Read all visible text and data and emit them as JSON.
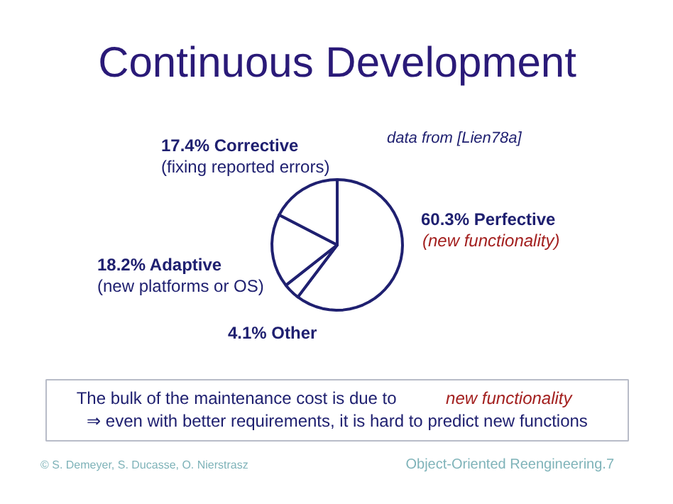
{
  "chart_data": {
    "type": "pie",
    "title": "Continuous Development",
    "categories": [
      "Perfective",
      "Other",
      "Adaptive",
      "Corrective"
    ],
    "values": [
      60.3,
      4.1,
      18.2,
      17.4
    ],
    "value_labels": [
      "60.3%",
      "4.1%",
      "18.2%",
      "17.4%"
    ],
    "colors": [
      "#ffffff",
      "#ffffff",
      "#ffffff",
      "#ffffff"
    ],
    "annotations": [
      "data from [Lien78a]",
      "(new functionality)",
      "(fixing reported errors)",
      "(new platforms or OS)",
      "The bulk of the maintenance cost is due to",
      "new functionality",
      "⇒ even with better requirements, it is hard to predict new functions",
      "© S. Demeyer, S. Ducasse, O. Nierstrasz",
      "Object-Oriented Reengineering.7"
    ]
  }
}
